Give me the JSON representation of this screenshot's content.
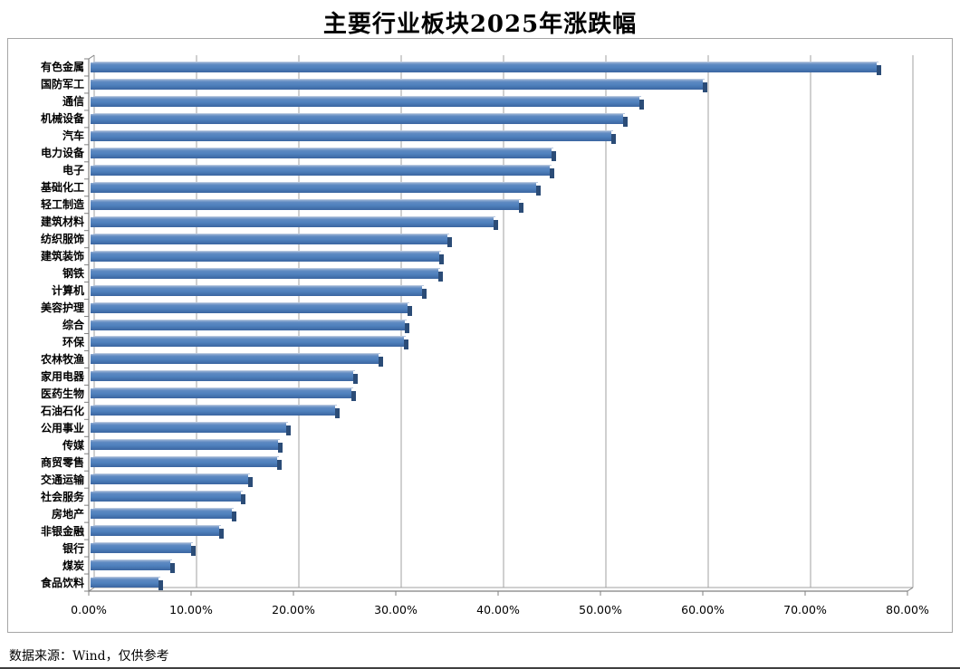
{
  "page": {
    "title": "主要行业板块2025年涨跌幅",
    "footer": "数据来源：Wind，仅供参考"
  },
  "chart_data": {
    "type": "bar",
    "orientation": "horizontal",
    "title": "主要行业板块2025年涨跌幅",
    "categories": [
      "有色金属",
      "国防军工",
      "通信",
      "机械设备",
      "汽车",
      "电力设备",
      "电子",
      "基础化工",
      "轻工制造",
      "建筑材料",
      "纺织服饰",
      "建筑装饰",
      "钢铁",
      "计算机",
      "美容护理",
      "综合",
      "环保",
      "农林牧渔",
      "家用电器",
      "医药生物",
      "石油石化",
      "公用事业",
      "传媒",
      "商贸零售",
      "交通运输",
      "社会服务",
      "房地产",
      "非银金融",
      "银行",
      "煤炭",
      "食品饮料"
    ],
    "values": [
      76.8,
      59.8,
      53.6,
      52.0,
      50.9,
      45.0,
      44.9,
      43.5,
      41.9,
      39.4,
      34.9,
      34.1,
      34.0,
      32.4,
      31.0,
      30.7,
      30.6,
      28.1,
      25.7,
      25.5,
      23.9,
      19.1,
      18.3,
      18.2,
      15.4,
      14.7,
      13.8,
      12.6,
      9.8,
      7.8,
      6.6
    ],
    "value_unit": "%",
    "sort": "descending",
    "xlabel": "",
    "ylabel": "",
    "xlim": [
      0,
      80
    ],
    "x_tick_labels": [
      "0.00%",
      "10.00%",
      "20.00%",
      "30.00%",
      "40.00%",
      "50.00%",
      "60.00%",
      "70.00%",
      "80.00%"
    ],
    "grid": true,
    "legend": false,
    "style": "excel-3d-bar",
    "colors": {
      "bar": "#4f81bd",
      "bar_cap": "#2b4c77",
      "gridline": "#a0a0a0",
      "axis": "#808080",
      "border": "#a6a6a6",
      "text": "#000000"
    },
    "footer": "数据来源：Wind，仅供参考"
  }
}
